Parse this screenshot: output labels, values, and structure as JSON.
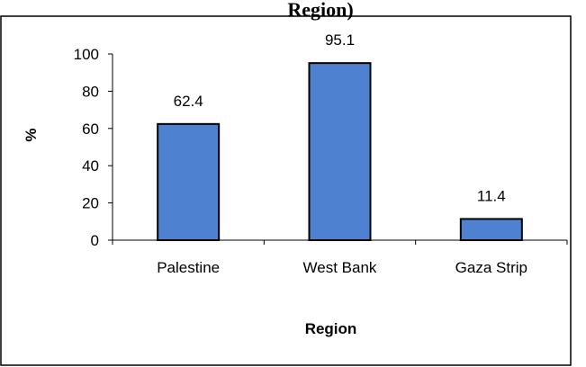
{
  "header": {
    "partial_caption": "Region)"
  },
  "chart_data": {
    "type": "bar",
    "categories": [
      "Palestine",
      "West Bank",
      "Gaza Strip"
    ],
    "values": [
      62.4,
      95.1,
      11.4
    ],
    "data_labels": [
      "62.4",
      "95.1",
      "11.4"
    ],
    "title": "",
    "xlabel": "Region",
    "ylabel": "%",
    "ylim": [
      0,
      100
    ],
    "yticks": [
      0,
      20,
      40,
      60,
      80,
      100
    ],
    "grid": false,
    "legend": "none",
    "bar_color": "#4f81d1",
    "bar_edge_color": "#000000"
  }
}
